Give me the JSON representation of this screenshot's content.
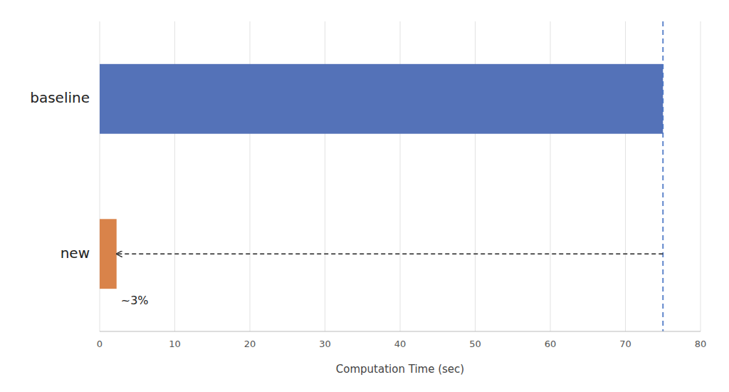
{
  "chart_data": {
    "type": "bar",
    "orientation": "horizontal",
    "categories": [
      "baseline",
      "new"
    ],
    "values": [
      75.0,
      2.25
    ],
    "colors": [
      "#5472B8",
      "#D9834A"
    ],
    "xlabel": "Computation Time (sec)",
    "annotation": "~3%",
    "xlim": [
      0,
      80
    ],
    "xticks": [
      0,
      10,
      20,
      30,
      40,
      50,
      60,
      70,
      80
    ],
    "grid": true
  }
}
